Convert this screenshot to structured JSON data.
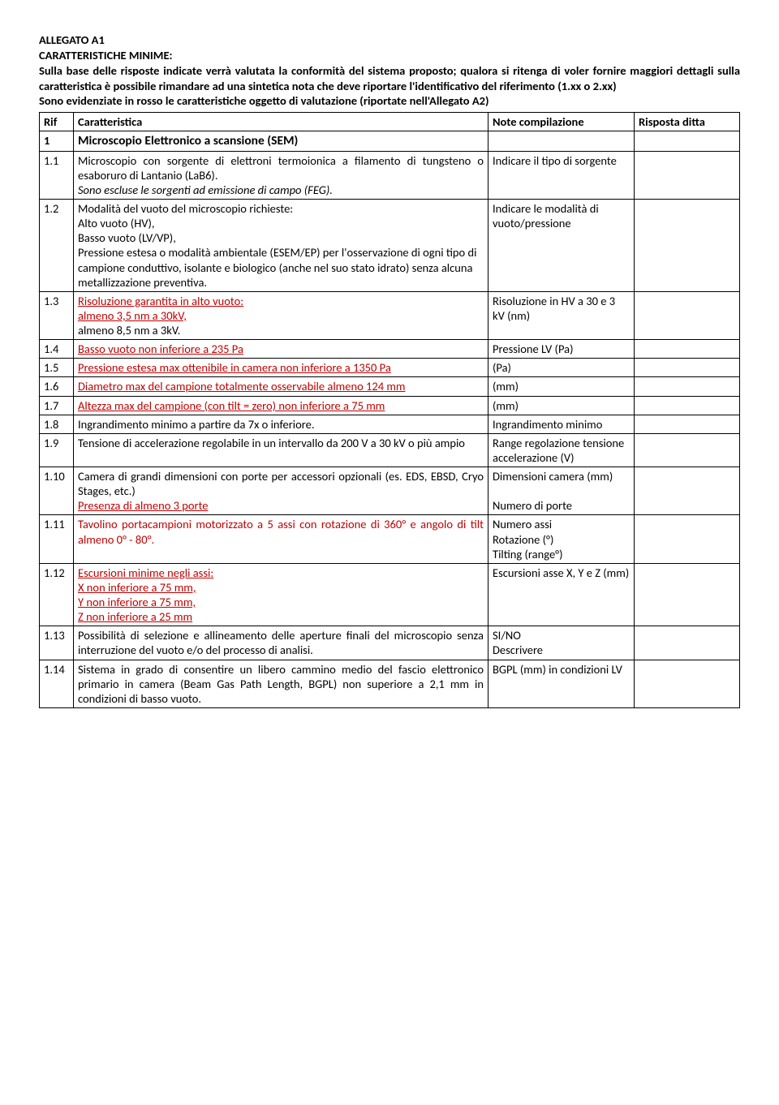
{
  "header": {
    "title": "ALLEGATO A1",
    "subtitle": "CARATTERISTICHE MINIME:",
    "intro": "Sulla base delle risposte indicate verrà valutata la conformità del sistema proposto; qualora si ritenga di voler fornire maggiori dettagli sulla caratteristica è possibile rimandare ad una sintetica nota che deve riportare l'identificativo del riferimento (1.xx o 2.xx)",
    "red_note": "Sono evidenziate in rosso le caratteristiche oggetto di valutazione (riportate nell'Allegato A2)"
  },
  "thead": {
    "rif": "Rif",
    "car": "Caratteristica",
    "note": "Note compilazione",
    "risp": "Risposta ditta"
  },
  "rows": {
    "r1": {
      "rif": "1",
      "car": "Microscopio Elettronico a scansione (SEM)",
      "note": ""
    },
    "r11": {
      "rif": "1.1",
      "car_main": "Microscopio con sorgente di elettroni termoionica a filamento di tungsteno o esaboruro di Lantanio (LaB6).",
      "car_italic": "Sono escluse le sorgenti ad emissione di campo (FEG).",
      "note": "Indicare il tipo di sorgente"
    },
    "r12": {
      "rif": "1.2",
      "car": "Modalità del vuoto del microscopio richieste:\nAlto vuoto (HV),\nBasso vuoto (LV/VP),\nPressione estesa o modalità ambientale (ESEM/EP) per l'osservazione di ogni tipo di campione conduttivo, isolante e biologico (anche nel suo stato idrato) senza alcuna metallizzazione preventiva.",
      "note": "Indicare le modalità di vuoto/pressione"
    },
    "r13": {
      "rif": "1.3",
      "car_red1": "Risoluzione garantita in alto vuoto:",
      "car_red2": "almeno 3,5 nm  a 30kV,",
      "car_plain": "almeno 8,5 nm  a 3kV.",
      "note": "Risoluzione in HV a 30 e 3 kV (nm)"
    },
    "r14": {
      "rif": "1.4",
      "car_red": "Basso vuoto non inferiore a 235 Pa",
      "note": "Pressione LV (Pa)"
    },
    "r15": {
      "rif": "1.5",
      "car_red": "Pressione estesa max ottenibile in camera non inferiore a 1350 Pa",
      "note": "(Pa)"
    },
    "r16": {
      "rif": "1.6",
      "car_red": "Diametro max del campione totalmente osservabile almeno 124 mm",
      "note": "(mm)"
    },
    "r17": {
      "rif": "1.7",
      "car_red": "Altezza max del campione (con tilt = zero) non inferiore a 75 mm",
      "note": "(mm)"
    },
    "r18": {
      "rif": "1.8",
      "car": "Ingrandimento minimo a partire da 7x o inferiore.",
      "note": "Ingrandimento minimo"
    },
    "r19": {
      "rif": "1.9",
      "car": "Tensione di accelerazione regolabile in un intervallo da 200 V a 30 kV o più ampio",
      "note": "Range regolazione tensione accelerazione (V)"
    },
    "r110": {
      "rif": "1.10",
      "car_plain": "Camera di grandi dimensioni con porte per accessori opzionali (es. EDS, EBSD, Cryo Stages, etc.)",
      "car_red": "Presenza di almeno 3 porte",
      "note1": "Dimensioni camera (mm)",
      "note2": "Numero di porte"
    },
    "r111": {
      "rif": "1.11",
      "car_red": "Tavolino portacampioni motorizzato a 5 assi con rotazione di 360° e angolo di  tilt almeno 0° - 80°.",
      "note": "Numero assi\nRotazione (°)\nTilting (range°)"
    },
    "r112": {
      "rif": "1.12",
      "car_red1": "Escursioni minime negli assi:",
      "car_red2": "X non inferiore a 75 mm,",
      "car_red3": "Y non inferiore a 75 mm,",
      "car_red4": "Z non inferiore a 25 mm",
      "note": "Escursioni asse X, Y e Z (mm)"
    },
    "r113": {
      "rif": "1.13",
      "car": "Possibilità di selezione e allineamento delle aperture finali del microscopio senza interruzione del vuoto e/o del processo di analisi.",
      "note": "SI/NO\nDescrivere"
    },
    "r114": {
      "rif": "1.14",
      "car": "Sistema in grado di consentire un libero cammino medio del fascio elettronico primario in camera (Beam Gas Path Length, BGPL) non superiore a 2,1 mm in condizioni di basso vuoto.",
      "note": "BGPL (mm) in condizioni LV"
    }
  }
}
